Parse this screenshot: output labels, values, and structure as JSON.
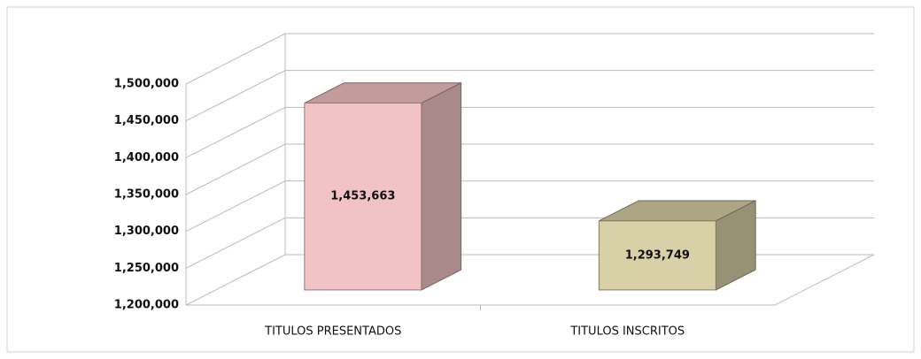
{
  "chart_data": {
    "type": "bar3d",
    "categories": [
      "TITULOS PRESENTADOS",
      "TITULOS INSCRITOS"
    ],
    "values": [
      1453663,
      1293749
    ],
    "value_labels": [
      "1,453,663",
      "1,293,749"
    ],
    "colors": [
      "#f2c3c4",
      "#d8d0a6"
    ],
    "ylim": [
      1200000,
      1500000
    ],
    "yticks": [
      {
        "value": 1200000,
        "label": "1,200,000"
      },
      {
        "value": 1250000,
        "label": "1,250,000"
      },
      {
        "value": 1300000,
        "label": "1,300,000"
      },
      {
        "value": 1350000,
        "label": "1,350,000"
      },
      {
        "value": 1400000,
        "label": "1,400,000"
      },
      {
        "value": 1450000,
        "label": "1,450,000"
      },
      {
        "value": 1500000,
        "label": "1,500,000"
      }
    ],
    "grid": true
  }
}
